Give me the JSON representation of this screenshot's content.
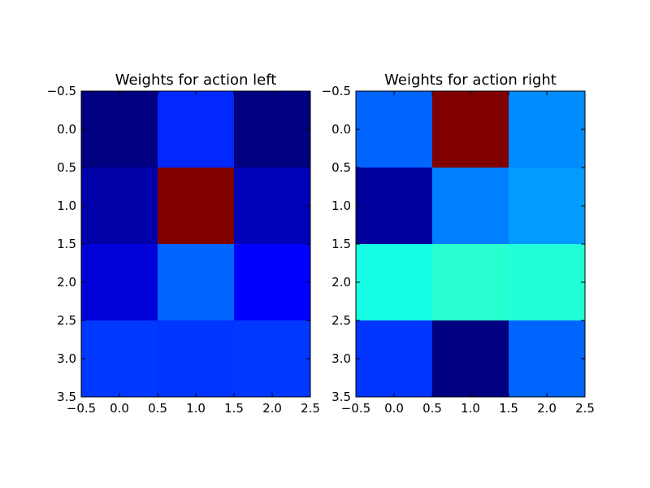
{
  "chart_data": [
    {
      "type": "heatmap",
      "title": "Weights for action left",
      "colormap": "jet",
      "xlim": [
        -0.5,
        2.5
      ],
      "ylim": [
        3.5,
        -0.5
      ],
      "x_ticks": [
        "−0.5",
        "0.0",
        "0.5",
        "1.0",
        "1.5",
        "2.0",
        "2.5"
      ],
      "y_ticks": [
        "−0.5",
        "0.0",
        "0.5",
        "1.0",
        "1.5",
        "2.0",
        "2.5",
        "3.0",
        "3.5"
      ],
      "grid": false,
      "cells": [
        [
          "#000080",
          "#0028ff",
          "#000080"
        ],
        [
          "#0000a8",
          "#800000",
          "#0000b8"
        ],
        [
          "#0000d8",
          "#0064ff",
          "#0000ff"
        ],
        [
          "#0038ff",
          "#0034ff",
          "#0038ff"
        ]
      ]
    },
    {
      "type": "heatmap",
      "title": "Weights for action right",
      "colormap": "jet",
      "xlim": [
        -0.5,
        2.5
      ],
      "ylim": [
        3.5,
        -0.5
      ],
      "x_ticks": [
        "−0.5",
        "0.0",
        "0.5",
        "1.0",
        "1.5",
        "2.0",
        "2.5"
      ],
      "y_ticks": [
        "−0.5",
        "0.0",
        "0.5",
        "1.0",
        "1.5",
        "2.0",
        "2.5",
        "3.0",
        "3.5"
      ],
      "grid": false,
      "cells": [
        [
          "#0064ff",
          "#800000",
          "#008cff"
        ],
        [
          "#00009c",
          "#0080ff",
          "#009cff"
        ],
        [
          "#14ffe4",
          "#28ffd0",
          "#20ffd8"
        ],
        [
          "#0034ff",
          "#000080",
          "#0064ff"
        ]
      ]
    }
  ]
}
